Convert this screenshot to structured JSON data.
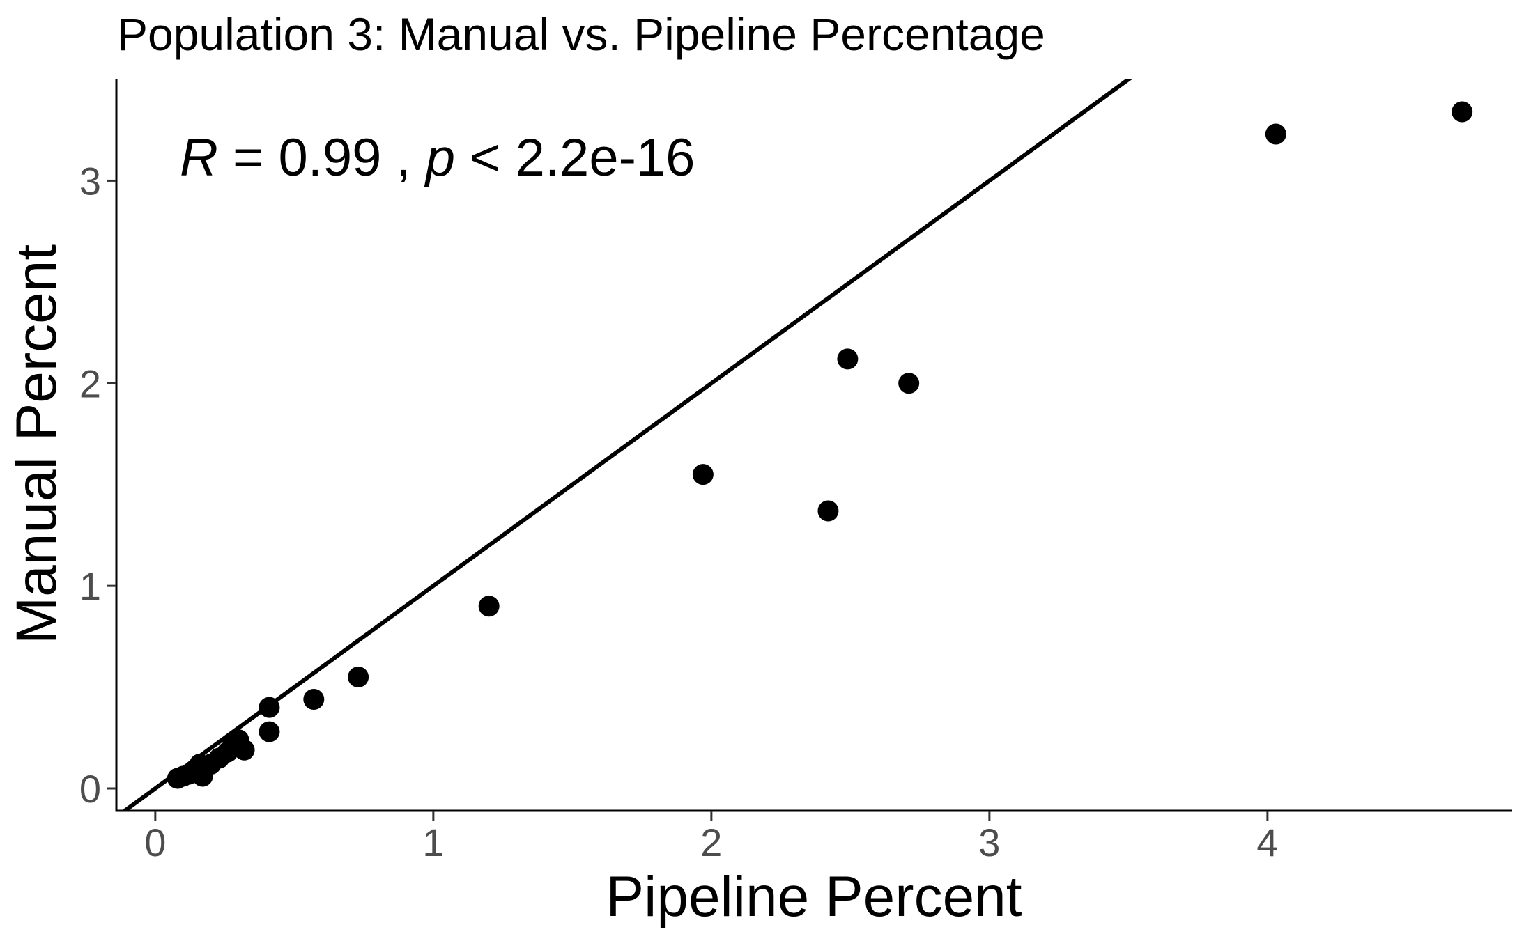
{
  "chart_data": {
    "type": "scatter",
    "title": "Population 3: Manual vs. Pipeline Percentage",
    "xlabel": "Pipeline Percent",
    "ylabel": "Manual Percent",
    "xlim": [
      -0.14,
      4.88
    ],
    "ylim": [
      -0.11,
      3.5
    ],
    "xticks": [
      0,
      1,
      2,
      3,
      4
    ],
    "yticks": [
      0,
      1,
      2,
      3
    ],
    "xtick_labels": [
      "0",
      "1",
      "2",
      "3",
      "4"
    ],
    "ytick_labels": [
      "0",
      "1",
      "2",
      "3"
    ],
    "grid": false,
    "annotation": {
      "r_symbol": "R",
      "r_text": " = 0.99 , ",
      "p_symbol": "p",
      "p_text": " < 2.2e-16"
    },
    "reference_line": {
      "slope": 1,
      "intercept": 0
    },
    "points": [
      {
        "x": 0.08,
        "y": 0.05
      },
      {
        "x": 0.1,
        "y": 0.06
      },
      {
        "x": 0.12,
        "y": 0.07
      },
      {
        "x": 0.14,
        "y": 0.09
      },
      {
        "x": 0.16,
        "y": 0.12
      },
      {
        "x": 0.17,
        "y": 0.06
      },
      {
        "x": 0.2,
        "y": 0.12
      },
      {
        "x": 0.23,
        "y": 0.15
      },
      {
        "x": 0.26,
        "y": 0.18
      },
      {
        "x": 0.28,
        "y": 0.22
      },
      {
        "x": 0.3,
        "y": 0.24
      },
      {
        "x": 0.32,
        "y": 0.19
      },
      {
        "x": 0.41,
        "y": 0.28
      },
      {
        "x": 0.41,
        "y": 0.4
      },
      {
        "x": 0.57,
        "y": 0.44
      },
      {
        "x": 0.73,
        "y": 0.55
      },
      {
        "x": 1.2,
        "y": 0.9
      },
      {
        "x": 1.97,
        "y": 1.55
      },
      {
        "x": 2.42,
        "y": 1.37
      },
      {
        "x": 2.49,
        "y": 2.12
      },
      {
        "x": 2.71,
        "y": 2.0
      },
      {
        "x": 4.03,
        "y": 3.23
      },
      {
        "x": 4.7,
        "y": 3.34
      }
    ],
    "point_color": "#000000",
    "line_color": "#000000"
  }
}
